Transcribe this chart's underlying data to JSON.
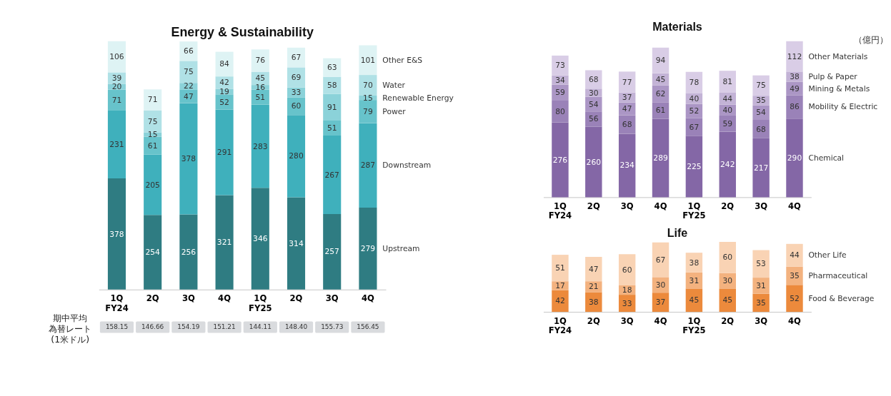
{
  "chart_data": [
    {
      "type": "bar",
      "stacked": true,
      "data_labels": true,
      "title": "Energy & Sustainability",
      "categories": [
        "1Q\nFY24",
        "2Q",
        "3Q",
        "4Q",
        "1Q\nFY25",
        "2Q",
        "3Q",
        "4Q"
      ],
      "series": [
        {
          "name": "Upstream",
          "color": "#2f7c82",
          "values": [
            378,
            254,
            256,
            321,
            346,
            314,
            257,
            279
          ]
        },
        {
          "name": "Downstream",
          "color": "#3fb0bc",
          "values": [
            231,
            205,
            378,
            291,
            283,
            280,
            267,
            287
          ]
        },
        {
          "name": "Power",
          "color": "#67c3cb",
          "values": [
            71,
            61,
            47,
            52,
            51,
            60,
            51,
            79
          ]
        },
        {
          "name": "Renewable Energy",
          "color": "#8bd2d9",
          "values": [
            20,
            15,
            22,
            19,
            16,
            33,
            91,
            15
          ]
        },
        {
          "name": "Water",
          "color": "#b0e1e6",
          "values": [
            39,
            75,
            75,
            42,
            45,
            69,
            58,
            70
          ]
        },
        {
          "name": "Other E&S",
          "color": "#def3f4",
          "values": [
            106,
            71,
            66,
            84,
            76,
            67,
            63,
            101
          ]
        }
      ],
      "annotations": [
        "期中平均",
        "為替レート",
        "(1米ドル)",
        "158.15",
        "146.66",
        "154.19",
        "151.21",
        "144.11",
        "148.40",
        "155.73",
        "156.45"
      ]
    },
    {
      "type": "bar",
      "stacked": true,
      "data_labels": true,
      "title": "Materials",
      "categories": [
        "1Q\nFY24",
        "2Q",
        "3Q",
        "4Q",
        "1Q\nFY25",
        "2Q",
        "3Q",
        "4Q"
      ],
      "series": [
        {
          "name": "Chemical",
          "color": "#8467a6",
          "values": [
            276,
            260,
            234,
            289,
            225,
            242,
            217,
            290
          ]
        },
        {
          "name": "Mobility & Electric",
          "color": "#9a82b8",
          "values": [
            80,
            56,
            68,
            61,
            67,
            59,
            68,
            86
          ]
        },
        {
          "name": "Mining & Metals",
          "color": "#ab96c5",
          "values": [
            59,
            54,
            47,
            62,
            52,
            40,
            54,
            49
          ]
        },
        {
          "name": "Pulp & Paper",
          "color": "#c3b3d6",
          "values": [
            34,
            30,
            37,
            45,
            40,
            44,
            35,
            38
          ]
        },
        {
          "name": "Other Materials",
          "color": "#d9cde6",
          "values": [
            73,
            68,
            77,
            94,
            78,
            81,
            75,
            112
          ]
        }
      ],
      "annotations": [
        "（億円）"
      ]
    },
    {
      "type": "bar",
      "stacked": true,
      "data_labels": true,
      "title": "Life",
      "categories": [
        "1Q\nFY24",
        "2Q",
        "3Q",
        "4Q",
        "1Q\nFY25",
        "2Q",
        "3Q",
        "4Q"
      ],
      "series": [
        {
          "name": "Food & Beverage",
          "color": "#ec8a3c",
          "values": [
            42,
            38,
            33,
            37,
            45,
            45,
            35,
            52
          ]
        },
        {
          "name": "Pharmaceutical",
          "color": "#f3b27f",
          "values": [
            17,
            21,
            18,
            30,
            31,
            30,
            31,
            35
          ]
        },
        {
          "name": "Other Life",
          "color": "#f9d3b4",
          "values": [
            51,
            47,
            60,
            67,
            38,
            60,
            53,
            44
          ]
        }
      ]
    }
  ]
}
